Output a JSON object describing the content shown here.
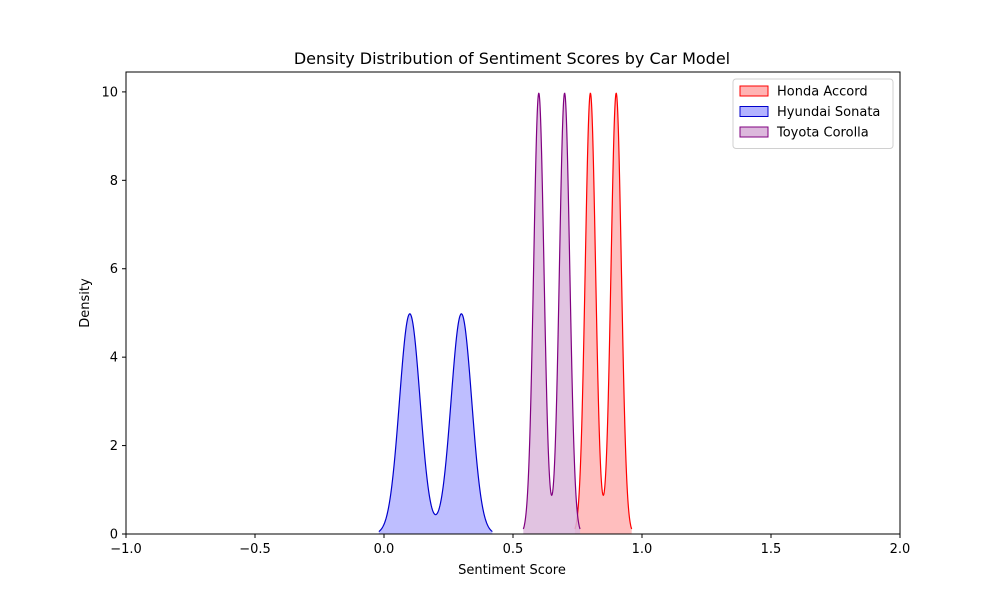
{
  "chart_data": {
    "type": "area",
    "title": "Density Distribution of Sentiment Scores by Car Model",
    "xlabel": "Sentiment Score",
    "ylabel": "Density",
    "xlim": [
      -1.0,
      2.0
    ],
    "ylim": [
      0,
      10.45
    ],
    "xticks": [
      -1.0,
      -0.5,
      0.0,
      0.5,
      1.0,
      1.5,
      2.0
    ],
    "xtick_labels": [
      "−1.0",
      "−0.5",
      "0.0",
      "0.5",
      "1.0",
      "1.5",
      "2.0"
    ],
    "yticks": [
      0,
      2,
      4,
      6,
      8,
      10
    ],
    "ytick_labels": [
      "0",
      "2",
      "4",
      "6",
      "8",
      "10"
    ],
    "grid": false,
    "legend_position": "top-right",
    "series": [
      {
        "name": "Honda Accord",
        "color": "#ff0000",
        "fill": "#ffb3b3",
        "peaks": [
          0.8,
          0.9
        ],
        "peak_density": 9.97,
        "bandwidth": 0.02,
        "support": [
          0.74,
          0.96
        ]
      },
      {
        "name": "Hyundai Sonata",
        "color": "#0000cc",
        "fill": "#b3b3ff",
        "peaks": [
          0.1,
          0.3
        ],
        "peak_density": 4.98,
        "bandwidth": 0.04,
        "support": [
          -0.02,
          0.42
        ]
      },
      {
        "name": "Toyota Corolla",
        "color": "#800080",
        "fill": "#dcb8dc",
        "peaks": [
          0.6,
          0.7
        ],
        "peak_density": 9.97,
        "bandwidth": 0.02,
        "support": [
          0.54,
          0.76
        ]
      }
    ]
  }
}
